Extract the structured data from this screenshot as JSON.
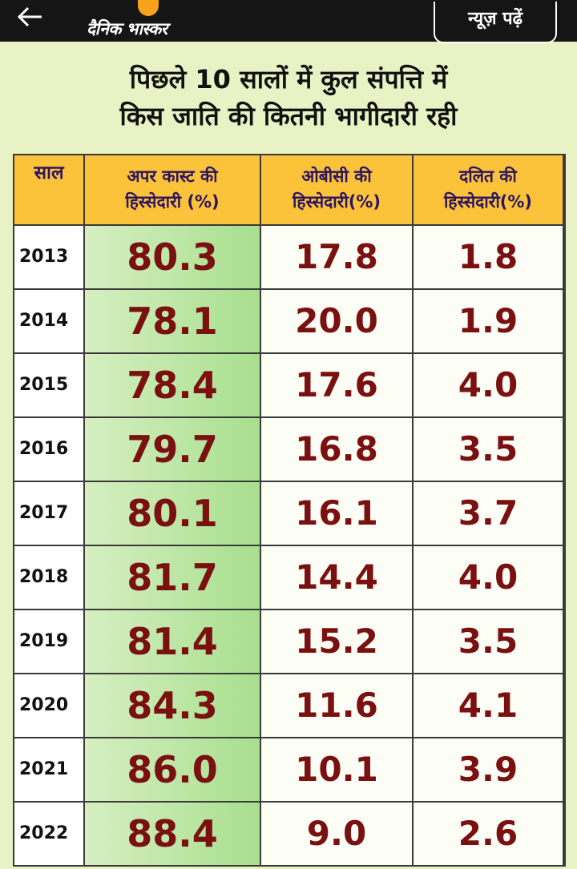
{
  "topbar": {
    "logo": "दैनिक भास्कर",
    "news_button": "न्यूज़ पढ़ें"
  },
  "title": {
    "line1": "पिछले 10 सालों में कुल संपत्ति में",
    "line2": "किस जाति की कितनी भागीदारी रही"
  },
  "table": {
    "headers": [
      [
        "साल"
      ],
      [
        "अपर कास्ट की",
        "हिस्सेदारी (%)"
      ],
      [
        "ओबीसी की",
        "हिस्सेदारी(%)"
      ],
      [
        "दलित की",
        "हिस्सेदारी(%)"
      ]
    ],
    "rows": [
      [
        "2013",
        "80.3",
        "17.8",
        "1.8"
      ],
      [
        "2014",
        "78.1",
        "20.0",
        "1.9"
      ],
      [
        "2015",
        "78.4",
        "17.6",
        "4.0"
      ],
      [
        "2016",
        "79.7",
        "16.8",
        "3.5"
      ],
      [
        "2017",
        "80.1",
        "16.1",
        "3.7"
      ],
      [
        "2018",
        "81.7",
        "14.4",
        "4.0"
      ],
      [
        "2019",
        "81.4",
        "15.2",
        "3.5"
      ],
      [
        "2020",
        "84.3",
        "11.6",
        "4.1"
      ],
      [
        "2021",
        "86.0",
        "10.1",
        "3.9"
      ],
      [
        "2022",
        "88.4",
        "9.0",
        "2.6"
      ]
    ]
  },
  "colors": {
    "header_bg": "#fbc33a",
    "header_text": "#2d1460",
    "value_text": "#7a1010",
    "upper_caste_col": "#a7df8e",
    "page_bg": "#e9f2c4"
  },
  "icons": {
    "back": "arrow-left-icon"
  }
}
